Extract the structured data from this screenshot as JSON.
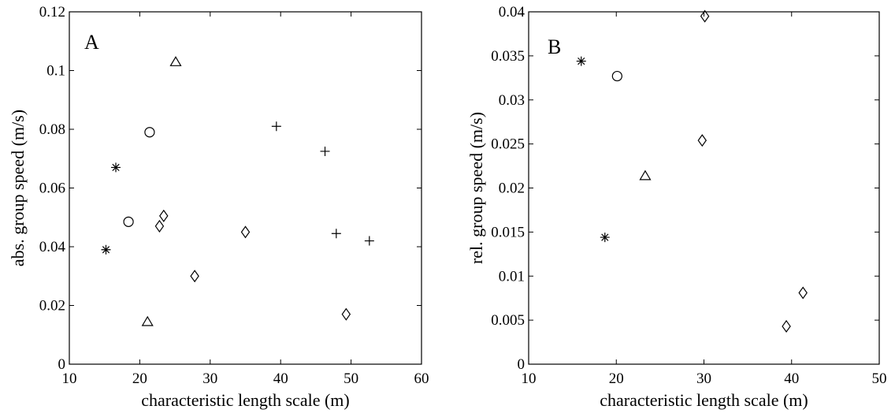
{
  "chart_data": [
    {
      "type": "scatter",
      "panel_label": "A",
      "xlabel": "characteristic length scale (m)",
      "ylabel": "abs. group speed (m/s)",
      "xlim": [
        10,
        60
      ],
      "ylim": [
        0,
        0.12
      ],
      "xticks": [
        10,
        20,
        30,
        40,
        50,
        60
      ],
      "yticks": [
        0,
        0.02,
        0.04,
        0.06,
        0.08,
        0.1,
        0.12
      ],
      "ytick_labels": [
        "0",
        "0.02",
        "0.04",
        "0.06",
        "0.08",
        "0.1",
        "0.12"
      ],
      "grid": false,
      "series": [
        {
          "marker": "asterisk",
          "points": [
            [
              16.6,
              0.067
            ],
            [
              15.2,
              0.039
            ]
          ]
        },
        {
          "marker": "circle",
          "points": [
            [
              21.4,
              0.079
            ],
            [
              18.4,
              0.0485
            ]
          ]
        },
        {
          "marker": "triangle",
          "points": [
            [
              25.1,
              0.103
            ],
            [
              21.1,
              0.0145
            ]
          ]
        },
        {
          "marker": "diamond",
          "points": [
            [
              23.4,
              0.0505
            ],
            [
              22.8,
              0.047
            ],
            [
              27.8,
              0.03
            ],
            [
              35.0,
              0.045
            ],
            [
              49.3,
              0.017
            ]
          ]
        },
        {
          "marker": "plus",
          "points": [
            [
              39.4,
              0.081
            ],
            [
              46.3,
              0.0725
            ],
            [
              47.9,
              0.0445
            ],
            [
              52.6,
              0.042
            ]
          ]
        }
      ]
    },
    {
      "type": "scatter",
      "panel_label": "B",
      "xlabel": "characteristic length scale (m)",
      "ylabel": "rel. group speed (m/s)",
      "xlim": [
        10,
        50
      ],
      "ylim": [
        0,
        0.04
      ],
      "xticks": [
        10,
        20,
        30,
        40,
        50
      ],
      "yticks": [
        0,
        0.005,
        0.01,
        0.015,
        0.02,
        0.025,
        0.03,
        0.035,
        0.04
      ],
      "ytick_labels": [
        "0",
        "0.005",
        "0.01",
        "0.015",
        "0.02",
        "0.025",
        "0.03",
        "0.035",
        "0.04"
      ],
      "grid": false,
      "series": [
        {
          "marker": "asterisk",
          "points": [
            [
              16.0,
              0.0344
            ],
            [
              18.7,
              0.0144
            ]
          ]
        },
        {
          "marker": "circle",
          "points": [
            [
              20.1,
              0.0327
            ]
          ]
        },
        {
          "marker": "triangle",
          "points": [
            [
              23.3,
              0.0214
            ]
          ]
        },
        {
          "marker": "diamond",
          "points": [
            [
              30.1,
              0.0395
            ],
            [
              29.8,
              0.0254
            ],
            [
              39.4,
              0.0043
            ],
            [
              41.3,
              0.0081
            ]
          ]
        }
      ]
    }
  ]
}
